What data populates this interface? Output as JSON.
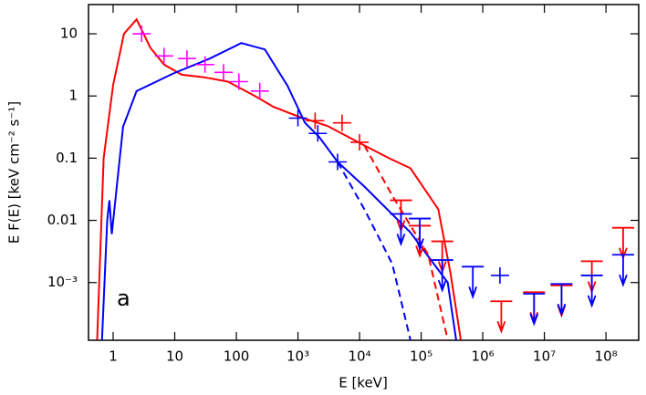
{
  "chart_data": {
    "type": "line",
    "x_label": "E [keV]",
    "y_label": "E F(E) [keV cm⁻² s⁻¹]",
    "annotation": "a",
    "log_x": true,
    "log_y": true,
    "xlim": [
      0.398,
      340000000
    ],
    "ylim": [
      0.000118,
      29.5
    ],
    "xticks": [
      1,
      10,
      100,
      {
        "value": 1000,
        "label": "10³"
      },
      {
        "value": 10000,
        "label": "10⁴"
      },
      {
        "value": 100000,
        "label": "10⁵"
      },
      {
        "value": 1000000,
        "label": "10⁶"
      },
      {
        "value": 10000000,
        "label": "10⁷"
      },
      {
        "value": 100000000,
        "label": "10⁸"
      }
    ],
    "yticks": [
      10,
      1,
      0.1,
      0.01,
      {
        "value": 0.001,
        "label": "10⁻³"
      }
    ],
    "series": [
      {
        "color": "#ff0000",
        "style": "solid",
        "x": [
          0.55,
          0.7,
          1,
          1.5,
          2.4,
          4,
          6.7,
          13,
          30,
          73,
          200,
          400,
          1000,
          3000,
          12000,
          30000,
          67000,
          190000,
          300000,
          440000
        ],
        "values": [
          0.00012,
          0.1,
          1.5,
          10,
          17,
          6,
          3.2,
          2.2,
          2.0,
          1.7,
          1.0,
          0.67,
          0.47,
          0.33,
          0.16,
          0.1,
          0.069,
          0.015,
          0.0014,
          0.00012
        ]
      },
      {
        "color": "#0000ff",
        "style": "solid",
        "x": [
          0.66,
          0.8,
          0.87,
          0.95,
          1.45,
          2.4,
          9.5,
          37,
          120,
          290,
          680,
          1300,
          2200,
          4400,
          12000,
          67000,
          270000,
          370000
        ],
        "values": [
          0.00012,
          0.01,
          0.021,
          0.006,
          0.32,
          1.2,
          2.3,
          4,
          7.1,
          5.6,
          1.45,
          0.37,
          0.22,
          0.087,
          0.035,
          0.0064,
          0.001,
          0.00012
        ]
      },
      {
        "color": "#ff0000",
        "style": "dashed",
        "x": [
          12000,
          34000,
          130000,
          270000
        ],
        "values": [
          0.16,
          0.025,
          0.0028,
          0.00012
        ]
      },
      {
        "color": "#0000ff",
        "style": "dashed",
        "x": [
          4400,
          12000,
          34000,
          67000
        ],
        "values": [
          0.087,
          0.015,
          0.002,
          0.00012
        ]
      },
      {
        "color": "#ff00ff",
        "style": "cross",
        "x": [
          2.9,
          6.7,
          15.8,
          31,
          62,
          110,
          240
        ],
        "values": [
          10,
          4.4,
          4,
          3.2,
          2.4,
          1.7,
          1.2
        ]
      },
      {
        "color": "#ff0000",
        "style": "cross",
        "x": [
          1900,
          5200,
          10000
        ],
        "values": [
          0.4,
          0.37,
          0.18
        ]
      },
      {
        "color": "#0000ff",
        "style": "cross",
        "x": [
          1000,
          2100,
          4400,
          1900000
        ],
        "values": [
          0.44,
          0.25,
          0.087,
          0.0013
        ]
      },
      {
        "color": "#ff0000",
        "style": "upper-limit",
        "x": [
          47000,
          95000,
          220000,
          2000000,
          6800000,
          19000000,
          59000000,
          190000000
        ],
        "values": [
          0.021,
          0.0082,
          0.0046,
          0.0005,
          0.0007,
          0.0009,
          0.0022,
          0.0076
        ]
      },
      {
        "color": "#0000ff",
        "style": "upper-limit",
        "x": [
          47000,
          95000,
          220000,
          690000,
          6800000,
          19000000,
          59000000,
          190000000
        ],
        "values": [
          0.0127,
          0.0107,
          0.0023,
          0.0018,
          0.00066,
          0.00095,
          0.0013,
          0.0028
        ]
      }
    ]
  }
}
